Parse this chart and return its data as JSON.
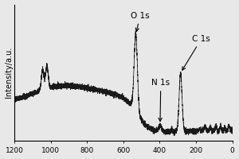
{
  "ylabel": "Intensity/a.u.",
  "xlim": [
    1200,
    0
  ],
  "xticks": [
    1200,
    1000,
    800,
    600,
    400,
    200,
    0
  ],
  "background_color": "#e8e8e8",
  "line_color": "#1a1a1a",
  "O1s_label": "O 1s",
  "N1s_label": "N 1s",
  "C1s_label": "C 1s",
  "seed": 7
}
